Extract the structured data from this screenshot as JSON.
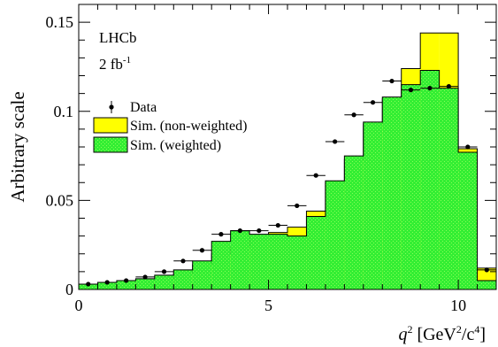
{
  "chart_data": {
    "type": "bar",
    "ylabel": "Arbitrary scale",
    "xlabel": {
      "var": "q",
      "var_sup": "2",
      "unit_open": " [GeV",
      "unit_sup1": "2",
      "unit_mid": "/c",
      "unit_sup2": "4",
      "unit_close": "]"
    },
    "xlim": [
      0,
      11
    ],
    "ylim": [
      0,
      0.16
    ],
    "x_ticks": [
      0,
      5,
      10
    ],
    "x_tick_labels": [
      "0",
      "5",
      "10"
    ],
    "y_ticks": [
      0,
      0.05,
      0.1,
      0.15
    ],
    "y_tick_labels": [
      "0",
      "0.05",
      "0.1",
      "0.15"
    ],
    "annotations": {
      "experiment": "LHCb",
      "lumi_main": "2 fb",
      "lumi_sup": "-1"
    },
    "legend": {
      "placement": "upper-left",
      "entries": [
        {
          "label": "Data",
          "style": "marker"
        },
        {
          "label": "Sim. (non-weighted)",
          "style": "fill",
          "color": "#ffff00"
        },
        {
          "label": "Sim. (weighted)",
          "style": "fill",
          "color": "#33ee33"
        }
      ]
    },
    "bin_edges": [
      0,
      0.5,
      1,
      1.5,
      2,
      2.5,
      3,
      3.5,
      4,
      4.5,
      5,
      5.5,
      6,
      6.5,
      7,
      7.5,
      8,
      8.5,
      9,
      9.5,
      10,
      10.5,
      11
    ],
    "series": [
      {
        "name": "Sim. (non-weighted)",
        "color": "#ffff00",
        "values": [
          0.002,
          0.003,
          0.004,
          0.005,
          0.006,
          0.009,
          0.014,
          0.02,
          0.024,
          0.03,
          0.032,
          0.035,
          0.044,
          0.06,
          0.073,
          0.093,
          0.107,
          0.124,
          0.144,
          0.144,
          0.079,
          0.012
        ]
      },
      {
        "name": "Sim. (weighted)",
        "color": "#33ee33",
        "values": [
          0.003,
          0.004,
          0.005,
          0.006,
          0.008,
          0.011,
          0.016,
          0.027,
          0.033,
          0.031,
          0.031,
          0.03,
          0.041,
          0.061,
          0.075,
          0.094,
          0.108,
          0.115,
          0.123,
          0.113,
          0.077,
          0.005
        ]
      },
      {
        "name": "Data",
        "x": [
          0.25,
          0.75,
          1.25,
          1.75,
          2.25,
          2.75,
          3.25,
          3.75,
          4.25,
          4.75,
          5.25,
          5.75,
          6.25,
          6.75,
          7.25,
          7.75,
          8.25,
          8.75,
          9.25,
          9.75,
          10.25,
          10.75
        ],
        "values": [
          0.003,
          0.004,
          0.005,
          0.007,
          0.01,
          0.016,
          0.022,
          0.031,
          0.033,
          0.033,
          0.036,
          0.047,
          0.064,
          0.083,
          0.098,
          0.105,
          0.117,
          0.112,
          0.113,
          0.114,
          0.08,
          0.011
        ]
      }
    ]
  }
}
